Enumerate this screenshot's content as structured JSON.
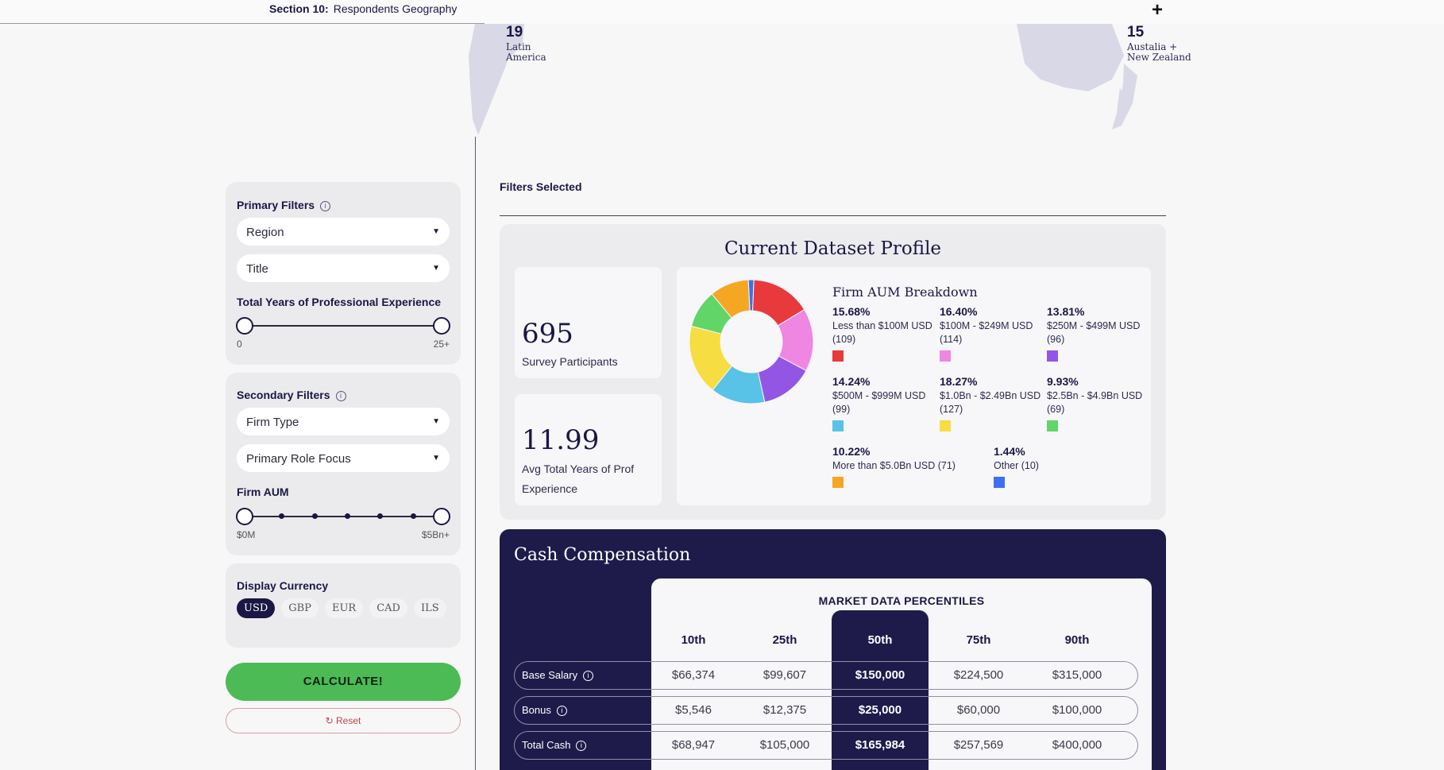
{
  "section": {
    "number": "Section 10:",
    "name": "Respondents Geography"
  },
  "map": {
    "regions": [
      {
        "count": "19",
        "line1": "Latin",
        "line2": "America"
      },
      {
        "count": "15",
        "line1": "Austalia +",
        "line2": "New Zealand"
      }
    ]
  },
  "filters": {
    "primary_title": "Primary Filters",
    "region_select": "Region",
    "title_select": "Title",
    "experience_label": "Total Years of Professional Experience",
    "experience_min": "0",
    "experience_max": "25+",
    "secondary_title": "Secondary Filters",
    "firm_type_select": "Firm Type",
    "role_focus_select": "Primary Role Focus",
    "firm_aum_label": "Firm AUM",
    "aum_min": "$0M",
    "aum_max": "$5Bn+",
    "currency_label": "Display Currency",
    "currencies": [
      "USD",
      "GBP",
      "EUR",
      "CAD",
      "ILS"
    ],
    "selected_currency": "USD",
    "calculate_label": "CALCULATE!",
    "reset_label": "Reset"
  },
  "filters_selected_label": "Filters Selected",
  "profile": {
    "title": "Current Dataset Profile",
    "participants_value": "695",
    "participants_label": "Survey Participants",
    "avg_years_value": "11.99",
    "avg_years_label": "Avg Total Years of Prof Experience",
    "aum_title": "Firm AUM Breakdown",
    "aum_breakdown": [
      {
        "pct": "15.68%",
        "label": "Less than $100M USD (109)",
        "value": 15.68,
        "color": "#e8393d"
      },
      {
        "pct": "16.40%",
        "label": "$100M - $249M USD (114)",
        "value": 16.4,
        "color": "#ef86e2"
      },
      {
        "pct": "13.81%",
        "label": "$250M - $499M USD (96)",
        "value": 13.81,
        "color": "#9355e3"
      },
      {
        "pct": "14.24%",
        "label": "$500M - $999M USD (99)",
        "value": 14.24,
        "color": "#58c3e6"
      },
      {
        "pct": "18.27%",
        "label": "$1.0Bn - $2.49Bn USD (127)",
        "value": 18.27,
        "color": "#f6dd41"
      },
      {
        "pct": "9.93%",
        "label": "$2.5Bn - $4.9Bn USD (69)",
        "value": 9.93,
        "color": "#62d568"
      },
      {
        "pct": "10.22%",
        "label": "More than $5.0Bn USD (71)",
        "value": 10.22,
        "color": "#f5a623"
      },
      {
        "pct": "1.44%",
        "label": "Other (10)",
        "value": 1.44,
        "color": "#3d6ff0"
      }
    ]
  },
  "cash": {
    "title": "Cash Compensation",
    "market_title": "MARKET DATA PERCENTILES",
    "percentiles": [
      "10th",
      "25th",
      "50th",
      "75th",
      "90th"
    ],
    "rows": [
      {
        "label": "Base Salary",
        "values": [
          "$66,374",
          "$99,607",
          "$150,000",
          "$224,500",
          "$315,000"
        ]
      },
      {
        "label": "Bonus",
        "values": [
          "$5,546",
          "$12,375",
          "$25,000",
          "$60,000",
          "$100,000"
        ]
      },
      {
        "label": "Total Cash",
        "values": [
          "$68,947",
          "$105,000",
          "$165,984",
          "$257,569",
          "$400,000"
        ]
      }
    ]
  }
}
